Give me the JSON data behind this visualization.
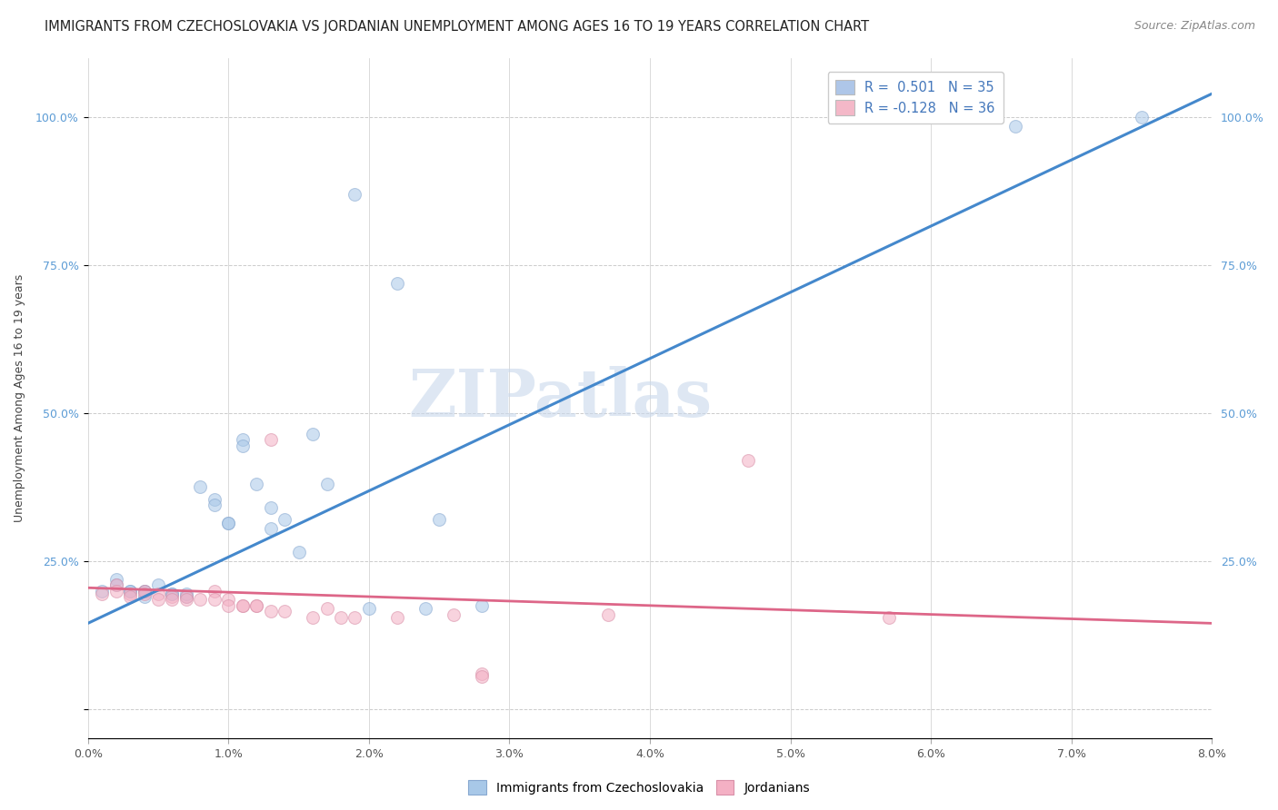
{
  "title": "IMMIGRANTS FROM CZECHOSLOVAKIA VS JORDANIAN UNEMPLOYMENT AMONG AGES 16 TO 19 YEARS CORRELATION CHART",
  "source": "Source: ZipAtlas.com",
  "ylabel": "Unemployment Among Ages 16 to 19 years",
  "x_range": [
    0.0,
    0.08
  ],
  "y_range": [
    -0.05,
    1.1
  ],
  "y_ticks": [
    0.0,
    0.25,
    0.5,
    0.75,
    1.0
  ],
  "y_tick_labels": [
    "",
    "25.0%",
    "50.0%",
    "75.0%",
    "100.0%"
  ],
  "x_ticks": [
    0.0,
    0.01,
    0.02,
    0.03,
    0.04,
    0.05,
    0.06,
    0.07,
    0.08
  ],
  "x_tick_labels": [
    "0.0%",
    "1.0%",
    "2.0%",
    "3.0%",
    "4.0%",
    "5.0%",
    "6.0%",
    "7.0%",
    "8.0%"
  ],
  "legend_entries": [
    {
      "label": "R =  0.501   N = 35",
      "color": "#aec6e8"
    },
    {
      "label": "R = -0.128   N = 36",
      "color": "#f4b8c8"
    }
  ],
  "legend_bottom": [
    "Immigrants from Czechoslovakia",
    "Jordanians"
  ],
  "watermark": "ZIPatlas",
  "blue_scatter": [
    [
      0.001,
      0.2
    ],
    [
      0.002,
      0.22
    ],
    [
      0.002,
      0.21
    ],
    [
      0.003,
      0.2
    ],
    [
      0.003,
      0.2
    ],
    [
      0.004,
      0.2
    ],
    [
      0.004,
      0.19
    ],
    [
      0.004,
      0.2
    ],
    [
      0.005,
      0.21
    ],
    [
      0.006,
      0.195
    ],
    [
      0.006,
      0.195
    ],
    [
      0.007,
      0.19
    ],
    [
      0.007,
      0.195
    ],
    [
      0.008,
      0.375
    ],
    [
      0.009,
      0.355
    ],
    [
      0.009,
      0.345
    ],
    [
      0.01,
      0.315
    ],
    [
      0.01,
      0.315
    ],
    [
      0.011,
      0.455
    ],
    [
      0.011,
      0.445
    ],
    [
      0.012,
      0.38
    ],
    [
      0.013,
      0.34
    ],
    [
      0.013,
      0.305
    ],
    [
      0.014,
      0.32
    ],
    [
      0.015,
      0.265
    ],
    [
      0.016,
      0.465
    ],
    [
      0.017,
      0.38
    ],
    [
      0.019,
      0.87
    ],
    [
      0.02,
      0.17
    ],
    [
      0.022,
      0.72
    ],
    [
      0.024,
      0.17
    ],
    [
      0.025,
      0.32
    ],
    [
      0.028,
      0.175
    ],
    [
      0.066,
      0.985
    ],
    [
      0.075,
      1.0
    ]
  ],
  "pink_scatter": [
    [
      0.001,
      0.195
    ],
    [
      0.002,
      0.21
    ],
    [
      0.002,
      0.2
    ],
    [
      0.003,
      0.195
    ],
    [
      0.003,
      0.19
    ],
    [
      0.004,
      0.2
    ],
    [
      0.004,
      0.195
    ],
    [
      0.005,
      0.195
    ],
    [
      0.005,
      0.185
    ],
    [
      0.006,
      0.19
    ],
    [
      0.006,
      0.185
    ],
    [
      0.007,
      0.19
    ],
    [
      0.007,
      0.185
    ],
    [
      0.008,
      0.185
    ],
    [
      0.009,
      0.2
    ],
    [
      0.009,
      0.185
    ],
    [
      0.01,
      0.185
    ],
    [
      0.01,
      0.175
    ],
    [
      0.011,
      0.175
    ],
    [
      0.011,
      0.175
    ],
    [
      0.012,
      0.175
    ],
    [
      0.012,
      0.175
    ],
    [
      0.013,
      0.455
    ],
    [
      0.013,
      0.165
    ],
    [
      0.014,
      0.165
    ],
    [
      0.016,
      0.155
    ],
    [
      0.017,
      0.17
    ],
    [
      0.018,
      0.155
    ],
    [
      0.019,
      0.155
    ],
    [
      0.022,
      0.155
    ],
    [
      0.026,
      0.16
    ],
    [
      0.028,
      0.06
    ],
    [
      0.028,
      0.055
    ],
    [
      0.037,
      0.16
    ],
    [
      0.047,
      0.42
    ],
    [
      0.057,
      0.155
    ]
  ],
  "blue_line": {
    "x": [
      0.0,
      0.08
    ],
    "y": [
      0.145,
      1.04
    ]
  },
  "pink_line": {
    "x": [
      0.0,
      0.08
    ],
    "y": [
      0.205,
      0.145
    ]
  },
  "scatter_size": 100,
  "scatter_alpha": 0.55,
  "blue_color": "#a8c8e8",
  "blue_edge": "#88a8d0",
  "pink_color": "#f4b0c4",
  "pink_edge": "#d890a8",
  "blue_line_color": "#4488cc",
  "pink_line_color": "#dd6688",
  "grid_color": "#cccccc",
  "background_color": "#ffffff",
  "title_fontsize": 10.5,
  "source_fontsize": 9,
  "axis_fontsize": 9,
  "watermark_fontsize": 52,
  "watermark_color": "#c8d8ec",
  "watermark_alpha": 0.6
}
